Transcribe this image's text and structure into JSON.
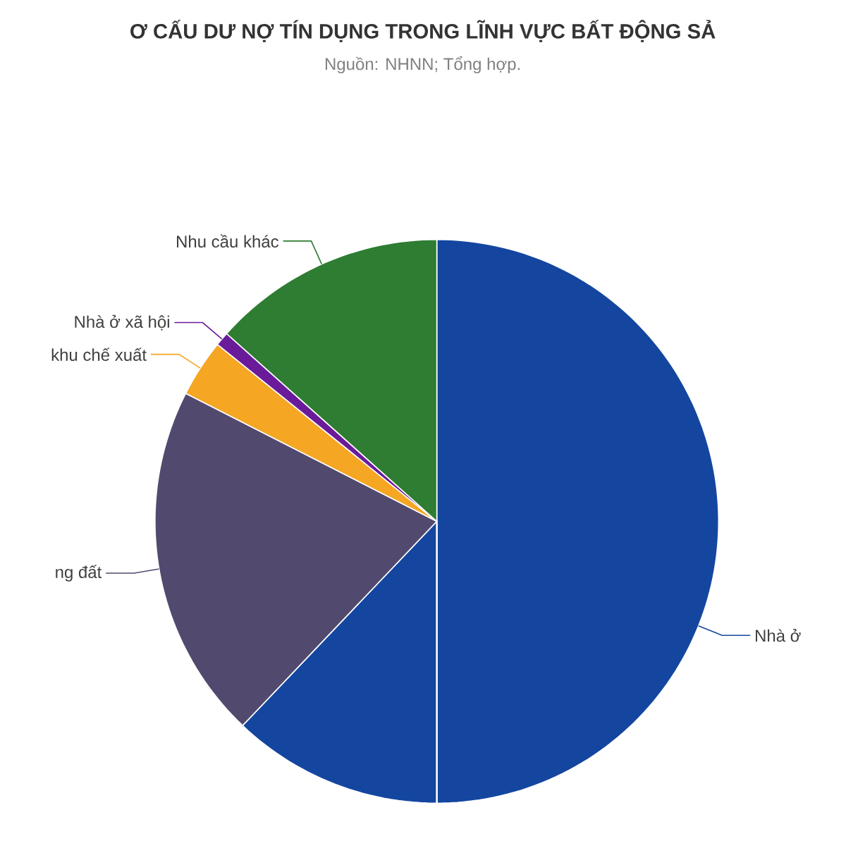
{
  "chart_data": {
    "type": "pie",
    "title": "Ơ CẤU DƯ NỢ TÍN DỤNG TRONG LĨNH VỰC BẤT ĐỘNG SẢ",
    "subtitle": "Nguồn: NHNN; Tổng hợp.",
    "categories": [
      "Nhà ở",
      "ng đất",
      "khu chế xuất",
      "Nhà ở xã hội",
      "Nhu cầu khác"
    ],
    "values": [
      62.1,
      20.4,
      3.3,
      0.8,
      13.4
    ],
    "colors": [
      "#1446a0",
      "#524a6e",
      "#f5a623",
      "#6a1b9a",
      "#2e7d32"
    ]
  }
}
